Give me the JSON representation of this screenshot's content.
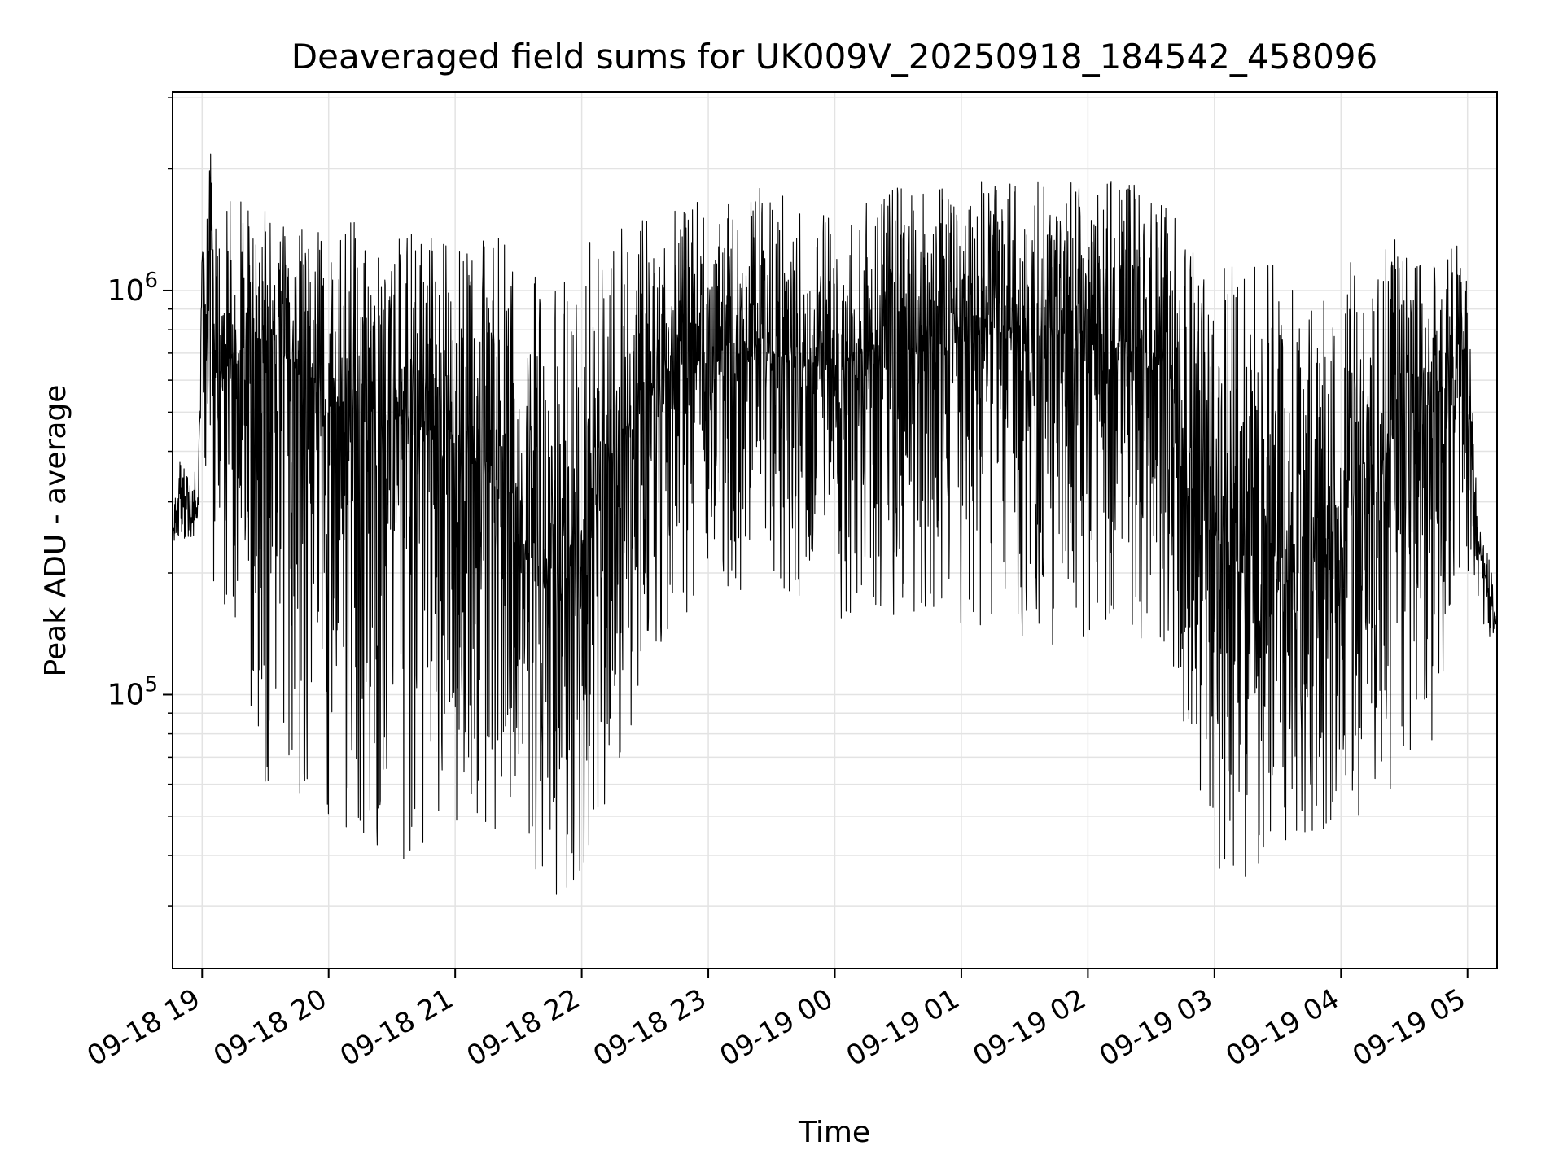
{
  "chart_data": {
    "type": "line",
    "title": "Deaveraged field sums for UK009V_20250918_184542_458096",
    "xlabel": "Time",
    "ylabel": "Peak ADU - average",
    "yscale": "log",
    "grid": true,
    "legend": "none",
    "xlim": [
      "2025-09-18 18:46",
      "2025-09-19 05:14"
    ],
    "ylim": [
      21000,
      3100000
    ],
    "x_ticks": [
      "2025-09-18 19:00",
      "2025-09-18 20:00",
      "2025-09-18 21:00",
      "2025-09-18 22:00",
      "2025-09-18 23:00",
      "2025-09-19 00:00",
      "2025-09-19 01:00",
      "2025-09-19 02:00",
      "2025-09-19 03:00",
      "2025-09-19 04:00",
      "2025-09-19 05:00"
    ],
    "x_tick_labels": [
      "09-18 19",
      "09-18 20",
      "09-18 21",
      "09-18 22",
      "09-18 23",
      "09-19 00",
      "09-19 01",
      "09-19 02",
      "09-19 03",
      "09-19 04",
      "09-19 05"
    ],
    "y_ticks": [
      100000,
      1000000
    ],
    "y_tick_labels": [
      {
        "base": "10",
        "exp": "5"
      },
      {
        "base": "10",
        "exp": "6"
      }
    ],
    "series": [
      {
        "color": "#000000",
        "x": [
          "2025-09-18 18:46",
          "2025-09-18 18:50",
          "2025-09-18 18:55",
          "2025-09-18 18:58",
          "2025-09-18 19:00",
          "2025-09-18 19:02",
          "2025-09-18 19:04",
          "2025-09-18 19:06",
          "2025-09-18 19:15",
          "2025-09-18 19:30",
          "2025-09-18 19:45",
          "2025-09-18 20:00",
          "2025-09-18 20:15",
          "2025-09-18 20:30",
          "2025-09-18 20:45",
          "2025-09-18 21:00",
          "2025-09-18 21:15",
          "2025-09-18 21:30",
          "2025-09-18 21:45",
          "2025-09-18 22:00",
          "2025-09-18 22:15",
          "2025-09-18 22:30",
          "2025-09-18 22:45",
          "2025-09-18 23:00",
          "2025-09-18 23:15",
          "2025-09-18 23:30",
          "2025-09-18 23:45",
          "2025-09-19 00:00",
          "2025-09-19 00:15",
          "2025-09-19 00:30",
          "2025-09-19 00:45",
          "2025-09-19 01:00",
          "2025-09-19 01:15",
          "2025-09-19 01:30",
          "2025-09-19 01:45",
          "2025-09-19 02:00",
          "2025-09-19 02:15",
          "2025-09-19 02:30",
          "2025-09-19 02:40",
          "2025-09-19 02:45",
          "2025-09-19 03:00",
          "2025-09-19 03:15",
          "2025-09-19 03:30",
          "2025-09-19 03:45",
          "2025-09-19 04:00",
          "2025-09-19 04:15",
          "2025-09-19 04:30",
          "2025-09-19 04:45",
          "2025-09-19 05:00",
          "2025-09-19 05:05",
          "2025-09-19 05:10",
          "2025-09-19 05:14"
        ],
        "y": [
          250000,
          330000,
          280000,
          290000,
          1100000,
          700000,
          2200000,
          600000,
          700000,
          750000,
          650000,
          500000,
          550000,
          480000,
          450000,
          420000,
          350000,
          250000,
          180000,
          250000,
          400000,
          550000,
          650000,
          700000,
          750000,
          700000,
          650000,
          650000,
          700000,
          720000,
          700000,
          750000,
          800000,
          780000,
          760000,
          750000,
          720000,
          700000,
          650000,
          450000,
          250000,
          200000,
          180000,
          220000,
          280000,
          350000,
          450000,
          550000,
          700000,
          230000,
          180000,
          150000
        ],
        "upper_envelope": [
          350000,
          380000,
          340000,
          400000,
          1300000,
          1500000,
          2300000,
          1600000,
          1700000,
          1600000,
          1500000,
          1500000,
          1500000,
          1400000,
          1400000,
          1400000,
          1400000,
          1300000,
          1200000,
          1300000,
          1400000,
          1500000,
          1600000,
          1700000,
          1800000,
          1800000,
          1700000,
          1600000,
          1700000,
          1800000,
          1800000,
          1800000,
          1900000,
          1900000,
          1900000,
          1900000,
          1850000,
          1800000,
          1700000,
          1300000,
          1200000,
          1200000,
          1150000,
          1150000,
          1200000,
          1300000,
          1350000,
          1400000,
          1300000,
          260000,
          250000,
          200000
        ],
        "lower_envelope": [
          230000,
          240000,
          240000,
          260000,
          600000,
          250000,
          350000,
          150000,
          160000,
          60000,
          55000,
          48000,
          45000,
          40000,
          35000,
          38000,
          40000,
          45000,
          30000,
          36000,
          60000,
          100000,
          150000,
          170000,
          180000,
          200000,
          150000,
          140000,
          150000,
          150000,
          140000,
          150000,
          140000,
          140000,
          130000,
          130000,
          130000,
          140000,
          120000,
          60000,
          35000,
          35000,
          40000,
          45000,
          45000,
          50000,
          60000,
          80000,
          200000,
          140000,
          130000,
          140000
        ]
      }
    ]
  }
}
